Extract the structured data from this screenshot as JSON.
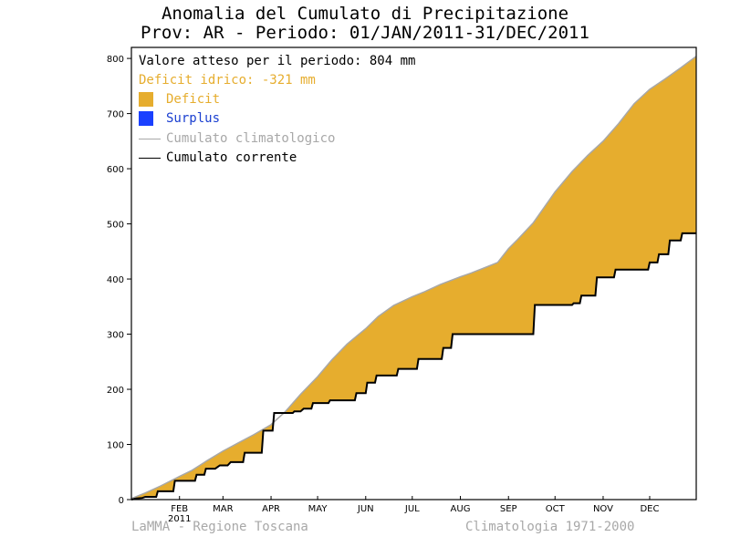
{
  "header": {
    "title_line1": "Anomalia del Cumulato di Precipitazione",
    "title_line2": "Prov: AR - Periodo: 01/JAN/2011-31/DEC/2011"
  },
  "legend": {
    "expected_text": "Valore atteso per il periodo: 804 mm",
    "deficit_text": "Deficit idrico: -321 mm",
    "deficit_label": "Deficit",
    "surplus_label": "Surplus",
    "climatological_label": "Cumulato climatologico",
    "current_label": "Cumulato corrente"
  },
  "footer": {
    "left": "LaMMA - Regione Toscana",
    "right": "Climatologia 1971-2000"
  },
  "colors": {
    "deficit": "#e6ad2e",
    "surplus": "#1a40ff",
    "climatological": "#a8a8a8",
    "current": "#000000",
    "deficit_text": "#e6ad2e",
    "surplus_text": "#1a3fd0"
  },
  "chart_data": {
    "type": "area",
    "xlabel": "",
    "ylabel": "",
    "xlim": [
      1,
      365
    ],
    "ylim": [
      0,
      820
    ],
    "yticks": [
      0,
      100,
      200,
      300,
      400,
      500,
      600,
      700,
      800
    ],
    "month_ticks": [
      {
        "label": "FEB",
        "day": 32,
        "sub": "2011"
      },
      {
        "label": "MAR",
        "day": 60
      },
      {
        "label": "APR",
        "day": 91
      },
      {
        "label": "MAY",
        "day": 121
      },
      {
        "label": "JUN",
        "day": 152
      },
      {
        "label": "JUL",
        "day": 182
      },
      {
        "label": "AUG",
        "day": 213
      },
      {
        "label": "SEP",
        "day": 244
      },
      {
        "label": "OCT",
        "day": 274
      },
      {
        "label": "NOV",
        "day": 305
      },
      {
        "label": "DEC",
        "day": 335
      }
    ],
    "series": [
      {
        "name": "Cumulato climatologico",
        "x": [
          1,
          10,
          20,
          32,
          40,
          50,
          60,
          70,
          80,
          91,
          100,
          110,
          121,
          130,
          140,
          152,
          160,
          170,
          182,
          190,
          200,
          213,
          220,
          230,
          237,
          244,
          250,
          260,
          270,
          274,
          285,
          295,
          305,
          315,
          325,
          335,
          345,
          355,
          365
        ],
        "y": [
          2,
          12,
          25,
          42,
          53,
          71,
          88,
          103,
          118,
          136,
          159,
          191,
          223,
          253,
          282,
          310,
          332,
          352,
          368,
          377,
          390,
          404,
          411,
          422,
          430,
          455,
          472,
          502,
          542,
          558,
          595,
          624,
          650,
          682,
          718,
          744,
          763,
          783,
          804
        ]
      },
      {
        "name": "Cumulato corrente",
        "x": [
          1,
          4,
          8,
          10,
          17,
          18,
          28,
          29,
          42,
          43,
          48,
          49,
          55,
          58,
          63,
          65,
          73,
          74,
          85,
          86,
          92,
          93,
          105,
          106,
          110,
          112,
          117,
          118,
          128,
          129,
          145,
          146,
          152,
          153,
          158,
          159,
          172,
          173,
          185,
          186,
          201,
          202,
          207,
          208,
          260,
          261,
          285,
          286,
          290,
          291,
          300,
          301,
          312,
          313,
          334,
          335,
          340,
          341,
          347,
          348,
          355,
          356,
          365
        ],
        "y": [
          0,
          2,
          3,
          5,
          5,
          15,
          15,
          34,
          34,
          45,
          45,
          56,
          56,
          62,
          62,
          68,
          68,
          85,
          85,
          125,
          125,
          157,
          157,
          160,
          160,
          165,
          165,
          175,
          175,
          180,
          180,
          193,
          193,
          212,
          212,
          225,
          225,
          237,
          237,
          255,
          255,
          275,
          275,
          300,
          300,
          353,
          353,
          356,
          356,
          370,
          370,
          403,
          403,
          417,
          417,
          430,
          430,
          445,
          445,
          470,
          470,
          483,
          483
        ]
      }
    ],
    "legend_position": "top-left"
  }
}
